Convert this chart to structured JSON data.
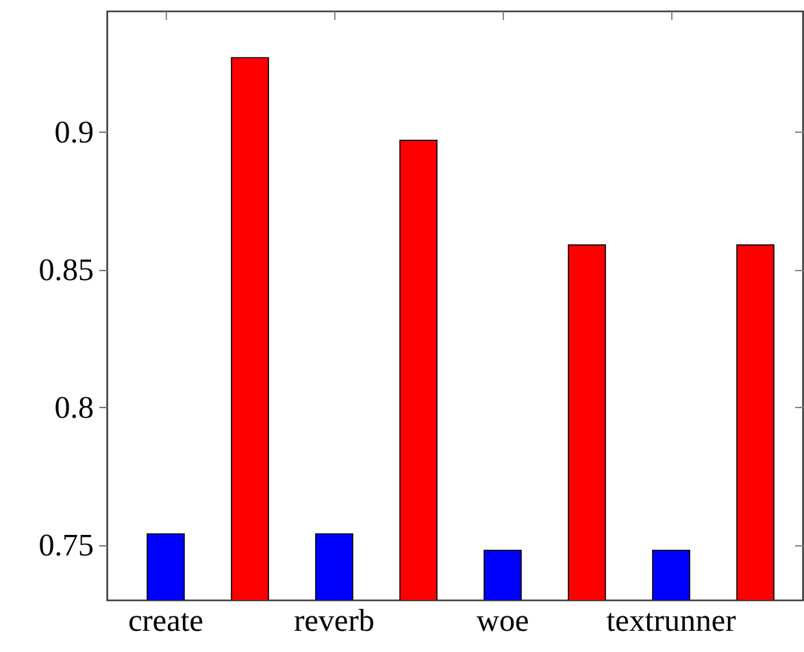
{
  "chart_data": {
    "type": "bar",
    "categories": [
      "create",
      "reverb",
      "woe",
      "textrunner"
    ],
    "series": [
      {
        "color": "#0000ff",
        "values": [
          0.754,
          0.754,
          0.748,
          0.748
        ]
      },
      {
        "color": "#ff0000",
        "values": [
          0.927,
          0.897,
          0.859,
          0.859
        ]
      }
    ],
    "ylim": [
      0.73,
      0.944
    ],
    "yticks": [
      0.75,
      0.8,
      0.85,
      0.9
    ],
    "grid": false
  }
}
